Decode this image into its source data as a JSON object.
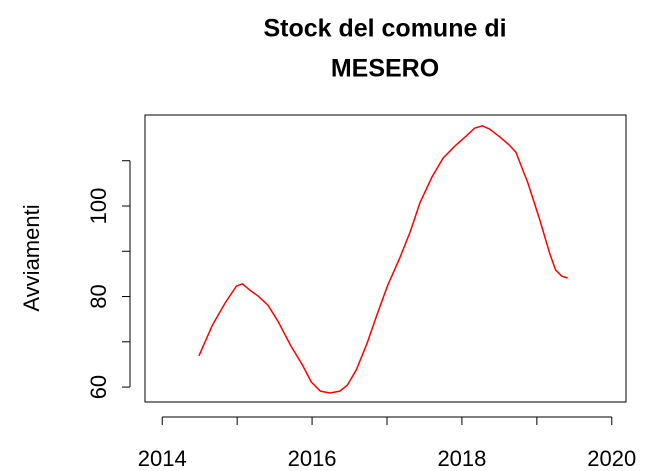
{
  "chart_data": {
    "type": "line",
    "title": [
      "Stock del comune di",
      "MESERO"
    ],
    "ylabel": "Avviamenti",
    "color": "#ff0000",
    "x": [
      2014.49,
      2014.67,
      2014.84,
      2014.99,
      2015.07,
      2015.17,
      2015.28,
      2015.41,
      2015.55,
      2015.71,
      2015.87,
      2015.99,
      2016.11,
      2016.24,
      2016.37,
      2016.47,
      2016.59,
      2016.73,
      2016.88,
      2017.01,
      2017.17,
      2017.31,
      2017.44,
      2017.6,
      2017.75,
      2017.91,
      2018.04,
      2018.17,
      2018.27,
      2018.37,
      2018.51,
      2018.63,
      2018.72,
      2018.88,
      2019.04,
      2019.17,
      2019.25,
      2019.33,
      2019.41
    ],
    "values": [
      66.9,
      73.7,
      78.6,
      82.3,
      82.8,
      81.4,
      80.1,
      78.1,
      74.4,
      69.3,
      64.9,
      61.1,
      59.1,
      58.7,
      59.1,
      60.4,
      63.8,
      69.5,
      76.6,
      82.5,
      88.5,
      94.3,
      100.7,
      106.4,
      110.6,
      113.3,
      115.2,
      117.2,
      117.7,
      117.0,
      115.2,
      113.5,
      111.9,
      105.1,
      96.9,
      89.6,
      85.9,
      84.5,
      84.1
    ],
    "xlim": [
      2013.77,
      2020.19
    ],
    "ylim": [
      56.7,
      120.1
    ],
    "xticks": [
      2014,
      2016,
      2018,
      2020
    ],
    "xticks_unlabeled": [
      2015,
      2017,
      2019
    ],
    "yticks": [
      60,
      80,
      100
    ],
    "yticks_unlabeled": [
      70,
      90,
      110
    ]
  }
}
